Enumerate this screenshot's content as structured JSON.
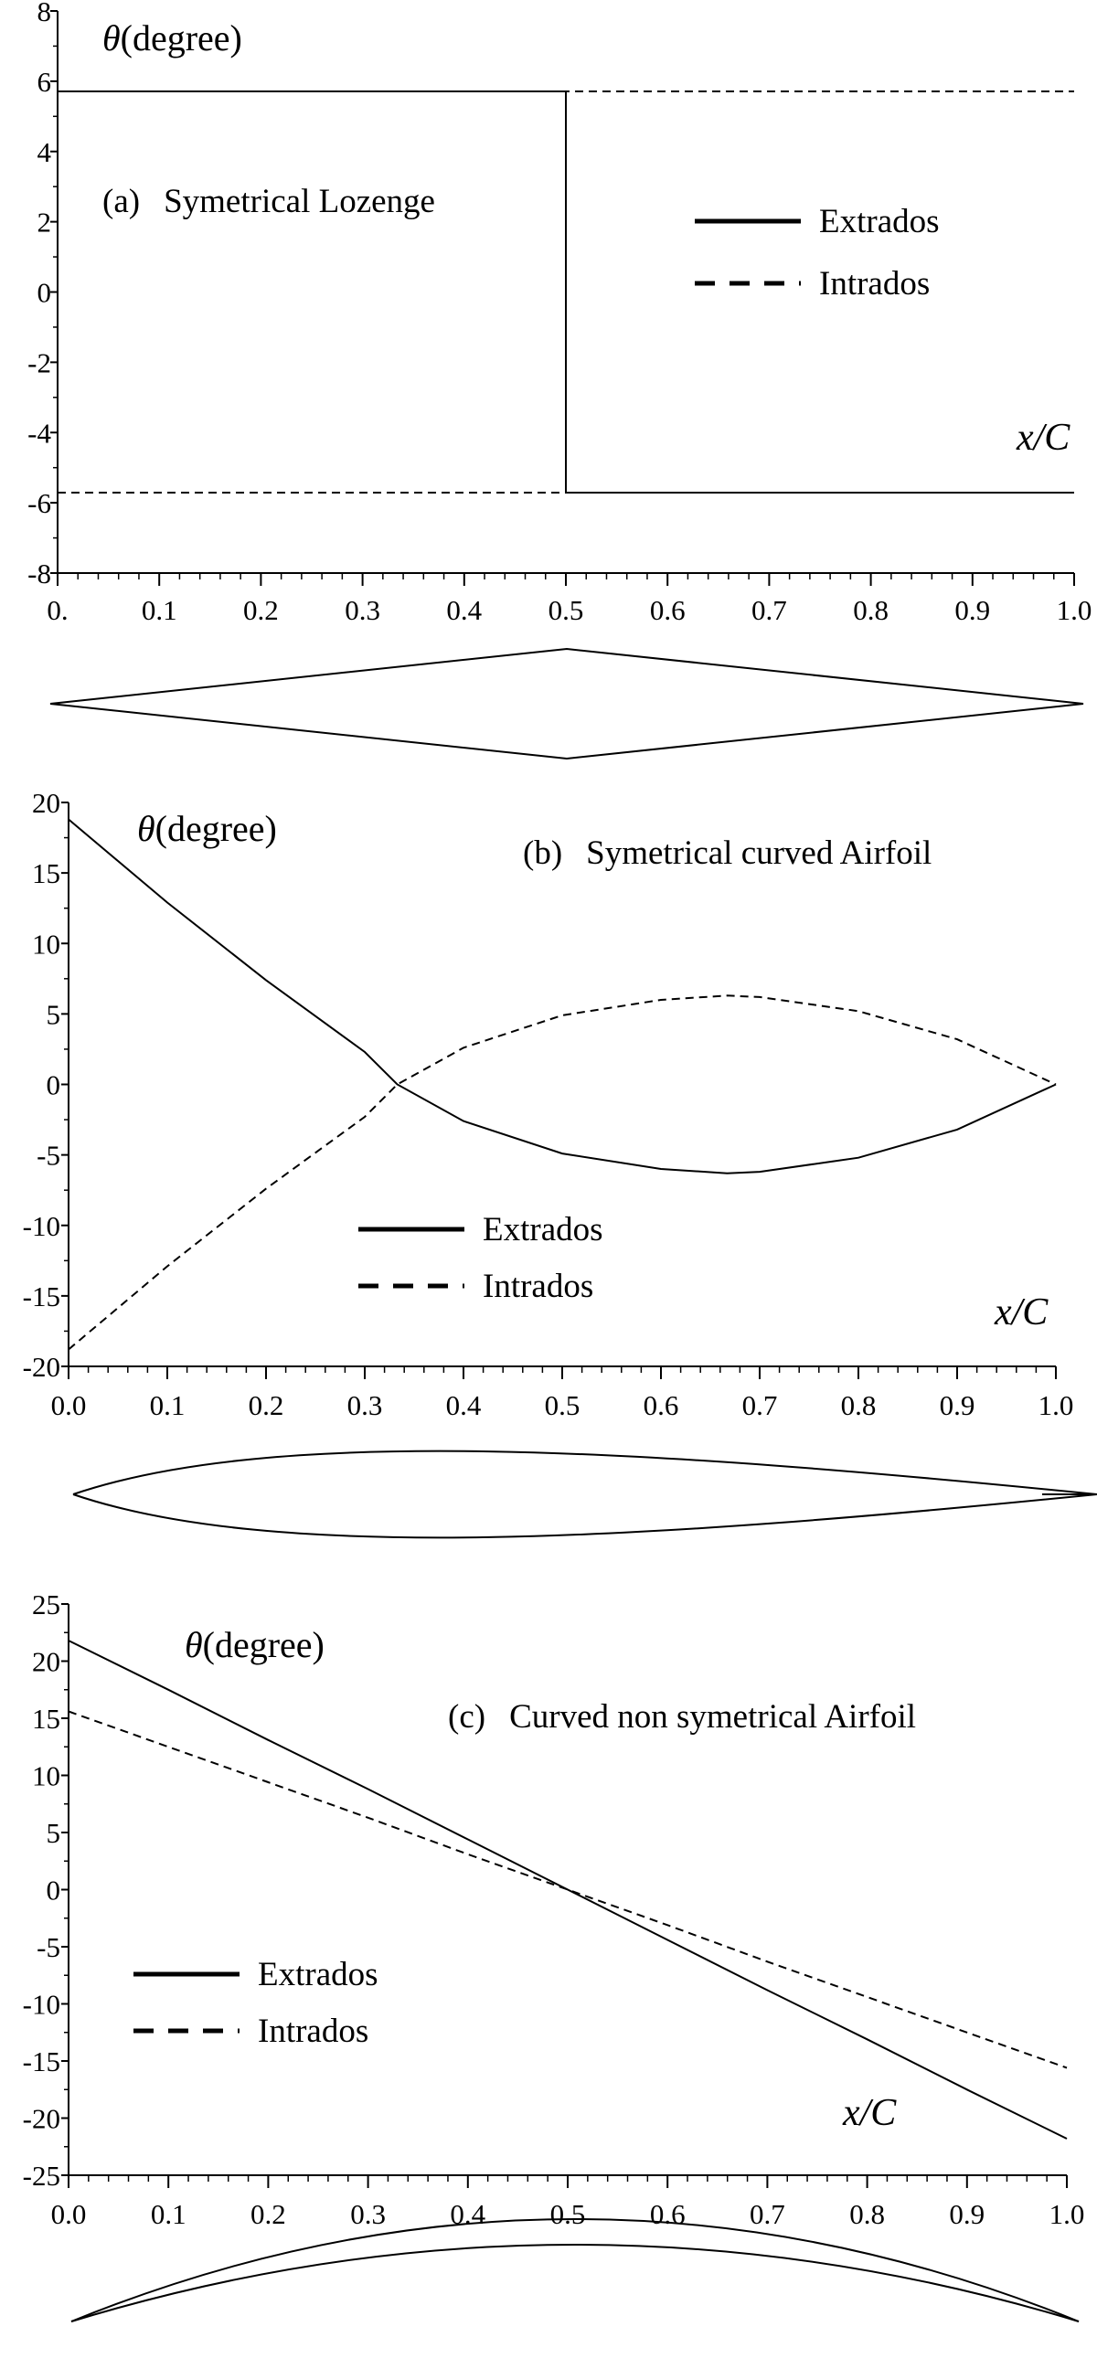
{
  "chart_data": [
    {
      "type": "line",
      "panel_label": "(a)",
      "title": "Symetrical Lozenge",
      "ylabel": "θ(degree)",
      "xlabel": "x/C",
      "xlim": [
        0,
        1
      ],
      "ylim": [
        -8,
        8
      ],
      "x_ticks": [
        0,
        0.1,
        0.2,
        0.3,
        0.4,
        0.5,
        0.6,
        0.7,
        0.8,
        0.9,
        1.0
      ],
      "x_tick_labels": [
        "0.",
        "0.1",
        "0.2",
        "0.3",
        "0.4",
        "0.5",
        "0.6",
        "0.7",
        "0.8",
        "0.9",
        "1.0"
      ],
      "y_ticks": [
        8,
        6,
        4,
        2,
        0,
        -2,
        -4,
        -6,
        -8
      ],
      "y_tick_labels": [
        "8",
        "6",
        "4",
        "2",
        "0",
        "-2",
        "-4",
        "-6",
        "-8"
      ],
      "legend": [
        "Extrados",
        "Intrados"
      ],
      "legend_position": "right",
      "series": [
        {
          "name": "Extrados",
          "style": "solid",
          "x": [
            0,
            0.5,
            0.5,
            1.0
          ],
          "y": [
            5.71,
            5.71,
            -5.71,
            -5.71
          ]
        },
        {
          "name": "Intrados",
          "style": "dashed",
          "x": [
            0,
            0.5,
            0.5,
            1.0
          ],
          "y": [
            -5.71,
            -5.71,
            5.71,
            5.71
          ]
        }
      ],
      "profile_shape": "lozenge"
    },
    {
      "type": "line",
      "panel_label": "(b)",
      "title": "Symetrical curved Airfoil",
      "ylabel": "θ(degree)",
      "xlabel": "x/C",
      "xlim": [
        0,
        1
      ],
      "ylim": [
        -20,
        20
      ],
      "x_ticks": [
        0,
        0.1,
        0.2,
        0.3,
        0.4,
        0.5,
        0.6,
        0.7,
        0.8,
        0.9,
        1.0
      ],
      "x_tick_labels": [
        "0.0",
        "0.1",
        "0.2",
        "0.3",
        "0.4",
        "0.5",
        "0.6",
        "0.7",
        "0.8",
        "0.9",
        "1.0"
      ],
      "y_ticks": [
        20,
        15,
        10,
        5,
        0,
        -5,
        -10,
        -15,
        -20
      ],
      "y_tick_labels": [
        "20",
        "15",
        "10",
        "5",
        "0",
        "-5",
        "-10",
        "-15",
        "-20"
      ],
      "legend": [
        "Extrados",
        "Intrados"
      ],
      "legend_position": "bottom-left",
      "series": [
        {
          "name": "Extrados",
          "style": "solid",
          "x": [
            0,
            0.1,
            0.2,
            0.3,
            0.333,
            0.4,
            0.5,
            0.6,
            0.667,
            0.7,
            0.8,
            0.9,
            1.0
          ],
          "y": [
            18.8,
            12.9,
            7.4,
            2.3,
            0,
            -2.6,
            -4.9,
            -6.0,
            -6.3,
            -6.2,
            -5.2,
            -3.2,
            0
          ]
        },
        {
          "name": "Intrados",
          "style": "dashed",
          "x": [
            0,
            0.1,
            0.2,
            0.3,
            0.333,
            0.4,
            0.5,
            0.6,
            0.667,
            0.7,
            0.8,
            0.9,
            1.0
          ],
          "y": [
            -18.8,
            -12.9,
            -7.4,
            -2.3,
            0,
            2.6,
            4.9,
            6.0,
            6.3,
            6.2,
            5.2,
            3.2,
            0
          ]
        }
      ],
      "profile_shape": "curved_symmetric"
    },
    {
      "type": "line",
      "panel_label": "(c)",
      "title": "Curved non symetrical Airfoil",
      "ylabel": "θ(degree)",
      "xlabel": "x/C",
      "xlim": [
        0,
        1
      ],
      "ylim": [
        -25,
        25
      ],
      "x_ticks": [
        0,
        0.1,
        0.2,
        0.3,
        0.4,
        0.5,
        0.6,
        0.7,
        0.8,
        0.9,
        1.0
      ],
      "x_tick_labels": [
        "0.0",
        "0.1",
        "0.2",
        "0.3",
        "0.4",
        "0.5",
        "0.6",
        "0.7",
        "0.8",
        "0.9",
        "1.0"
      ],
      "y_ticks": [
        25,
        20,
        15,
        10,
        5,
        0,
        -5,
        -10,
        -15,
        -20,
        -25
      ],
      "y_tick_labels": [
        "25",
        "20",
        "15",
        "10",
        "5",
        "0",
        "-5",
        "-10",
        "-15",
        "-20",
        "-25"
      ],
      "legend": [
        "Extrados",
        "Intrados"
      ],
      "legend_position": "center-left",
      "series": [
        {
          "name": "Extrados",
          "style": "solid",
          "x": [
            0,
            0.1,
            0.2,
            0.3,
            0.4,
            0.5,
            0.6,
            0.7,
            0.8,
            0.9,
            1.0
          ],
          "y": [
            21.8,
            17.5,
            13.1,
            8.8,
            4.4,
            0,
            -4.4,
            -8.8,
            -13.1,
            -17.5,
            -21.8
          ]
        },
        {
          "name": "Intrados",
          "style": "dashed",
          "x": [
            0,
            0.1,
            0.2,
            0.3,
            0.4,
            0.5,
            0.6,
            0.7,
            0.8,
            0.9,
            1.0
          ],
          "y": [
            15.6,
            12.5,
            9.4,
            6.3,
            3.1,
            0,
            -3.1,
            -6.3,
            -9.4,
            -12.5,
            -15.6
          ]
        }
      ],
      "profile_shape": "curved_asymmetric"
    }
  ]
}
